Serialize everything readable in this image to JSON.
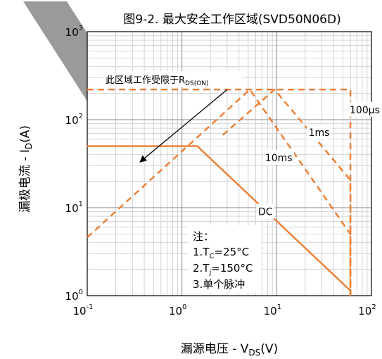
{
  "chart_data": {
    "type": "line",
    "title": "图9-2. 最大安全工作区域(SVD50N06D)",
    "xlabel": {
      "main": "漏源电压 - V",
      "sub": "DS",
      "suffix": "(V)"
    },
    "ylabel": {
      "main": "漏极电流 - I",
      "sub": "D",
      "suffix": "(A)"
    },
    "x_scale": "log",
    "y_scale": "log",
    "xlim": [
      0.1,
      100
    ],
    "ylim": [
      1,
      1000
    ],
    "grid": true,
    "x_ticks": [
      {
        "value": 0.1,
        "base": "10",
        "exp": "-1"
      },
      {
        "value": 1,
        "base": "10",
        "exp": "0"
      },
      {
        "value": 10,
        "base": "10",
        "exp": "1"
      },
      {
        "value": 100,
        "base": "10",
        "exp": "2"
      }
    ],
    "y_ticks": [
      {
        "value": 1,
        "base": "10",
        "exp": "0"
      },
      {
        "value": 10,
        "base": "10",
        "exp": "1"
      },
      {
        "value": 100,
        "base": "10",
        "exp": "2"
      },
      {
        "value": 1000,
        "base": "10",
        "exp": "3"
      }
    ],
    "color": "#ED7D31",
    "series": [
      {
        "name": "DC",
        "style": "solid",
        "points": [
          [
            0.1,
            50
          ],
          [
            1.45,
            50
          ],
          [
            60,
            1.14
          ],
          [
            60,
            1
          ]
        ]
      },
      {
        "name": "10ms",
        "style": "dashed",
        "points": [
          [
            0.1,
            4.6
          ],
          [
            5.2,
            220
          ],
          [
            60,
            5.0
          ],
          [
            60,
            1
          ]
        ]
      },
      {
        "name": "1ms",
        "style": "dashed",
        "points": [
          [
            2.7,
            67
          ],
          [
            9.5,
            220
          ],
          [
            60,
            20.5
          ],
          [
            60,
            1
          ]
        ]
      },
      {
        "name": "100μs",
        "style": "dashed",
        "points": [
          [
            0.1,
            220
          ],
          [
            60,
            220
          ],
          [
            60,
            1
          ]
        ]
      }
    ],
    "series_labels": [
      {
        "text": "DC",
        "x": 7.6,
        "y": 9.0
      },
      {
        "text": "10ms",
        "x": 10.5,
        "y": 37
      },
      {
        "text": "1ms",
        "x": 28,
        "y": 72
      },
      {
        "text": "100μs",
        "x": 85,
        "y": 130
      }
    ],
    "rds_annotation": {
      "text": "此区域工作受限于R",
      "sub": "DS(ON)",
      "arrow_from": [
        3.0,
        220
      ],
      "arrow_to": [
        0.36,
        33
      ]
    },
    "notes": {
      "title": "注：",
      "line1": {
        "main": "1.T",
        "sub": "C",
        "suffix": "=25°C"
      },
      "line2": {
        "main": "2.T",
        "sub": "j",
        "suffix": "=150°C"
      },
      "line3": "3.单个脉冲"
    }
  }
}
